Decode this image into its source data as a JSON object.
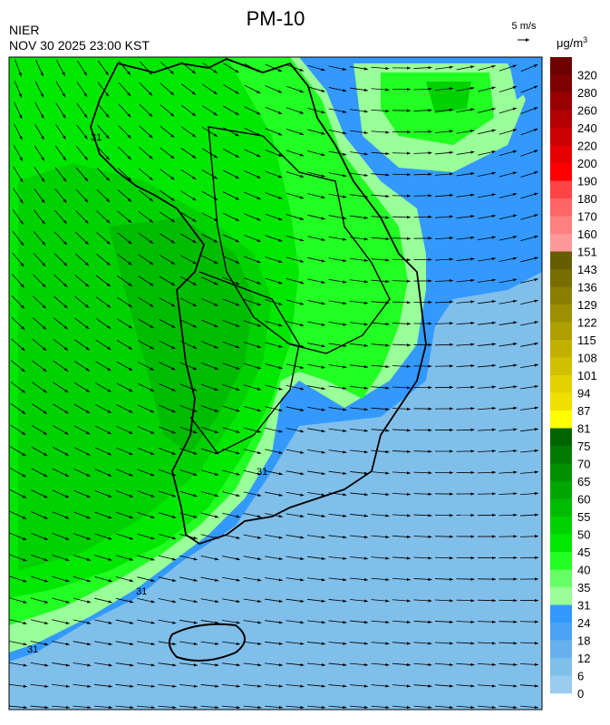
{
  "header": {
    "org": "NIER",
    "datetime": "NOV 30 2025 23:00 KST",
    "title": "PM-10",
    "wind_scale": "5 m/s"
  },
  "legend": {
    "unit": "μg/m",
    "unit_sup": "3",
    "ticks": [
      320,
      280,
      260,
      240,
      220,
      200,
      190,
      180,
      170,
      160,
      151,
      143,
      136,
      129,
      122,
      115,
      108,
      101,
      94,
      87,
      81,
      75,
      70,
      65,
      60,
      55,
      50,
      45,
      40,
      35,
      31,
      24,
      18,
      12,
      6,
      0
    ],
    "colors": [
      "#6e0000",
      "#800000",
      "#990000",
      "#b30000",
      "#cc0000",
      "#e60000",
      "#ff0000",
      "#ff4444",
      "#ff6666",
      "#ff8080",
      "#ff9999",
      "#665c00",
      "#786d00",
      "#8a7e00",
      "#9c8f00",
      "#ae9f00",
      "#c0b000",
      "#d2c100",
      "#e4d200",
      "#f0e000",
      "#ffff00",
      "#006400",
      "#007a00",
      "#009000",
      "#00a600",
      "#00bc00",
      "#00d200",
      "#00e800",
      "#22ff22",
      "#66ff66",
      "#99ff99",
      "#3399ff",
      "#4aa3f5",
      "#66b0ee",
      "#80bfea",
      "#99ccee"
    ]
  },
  "map": {
    "contour_labels": [
      "31",
      "31",
      "31",
      "31"
    ]
  }
}
